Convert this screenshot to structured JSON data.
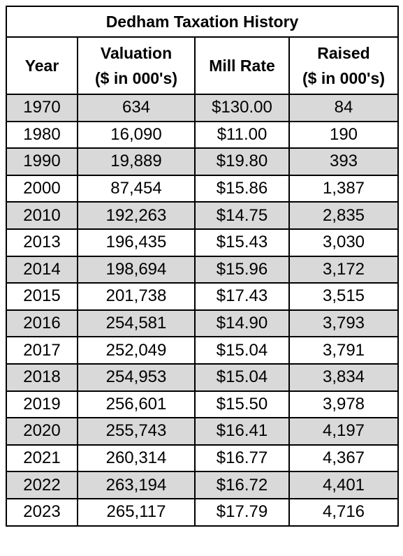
{
  "title": "Dedham Taxation History",
  "headers": {
    "year": [
      "Year"
    ],
    "valuation": [
      "Valuation",
      "($ in 000's)"
    ],
    "mill_rate": [
      "Mill Rate"
    ],
    "raised": [
      "Raised",
      "($ in 000's)"
    ]
  },
  "rows": [
    {
      "year": "1970",
      "valuation": "634",
      "mill_rate": "$130.00",
      "raised": "84"
    },
    {
      "year": "1980",
      "valuation": "16,090",
      "mill_rate": "$11.00",
      "raised": "190"
    },
    {
      "year": "1990",
      "valuation": "19,889",
      "mill_rate": "$19.80",
      "raised": "393"
    },
    {
      "year": "2000",
      "valuation": "87,454",
      "mill_rate": "$15.86",
      "raised": "1,387"
    },
    {
      "year": "2010",
      "valuation": "192,263",
      "mill_rate": "$14.75",
      "raised": "2,835"
    },
    {
      "year": "2013",
      "valuation": "196,435",
      "mill_rate": "$15.43",
      "raised": "3,030"
    },
    {
      "year": "2014",
      "valuation": "198,694",
      "mill_rate": "$15.96",
      "raised": "3,172"
    },
    {
      "year": "2015",
      "valuation": "201,738",
      "mill_rate": "$17.43",
      "raised": "3,515"
    },
    {
      "year": "2016",
      "valuation": "254,581",
      "mill_rate": "$14.90",
      "raised": "3,793"
    },
    {
      "year": "2017",
      "valuation": "252,049",
      "mill_rate": "$15.04",
      "raised": "3,791"
    },
    {
      "year": "2018",
      "valuation": "254,953",
      "mill_rate": "$15.04",
      "raised": "3,834"
    },
    {
      "year": "2019",
      "valuation": "256,601",
      "mill_rate": "$15.50",
      "raised": "3,978"
    },
    {
      "year": "2020",
      "valuation": "255,743",
      "mill_rate": "$16.41",
      "raised": "4,197"
    },
    {
      "year": "2021",
      "valuation": "260,314",
      "mill_rate": "$16.77",
      "raised": "4,367"
    },
    {
      "year": "2022",
      "valuation": "263,194",
      "mill_rate": "$16.72",
      "raised": "4,401"
    },
    {
      "year": "2023",
      "valuation": "265,117",
      "mill_rate": "$17.79",
      "raised": "4,716"
    }
  ],
  "colors": {
    "shaded_row": "#d9d9d9",
    "plain_row": "#ffffff",
    "border": "#000000"
  }
}
